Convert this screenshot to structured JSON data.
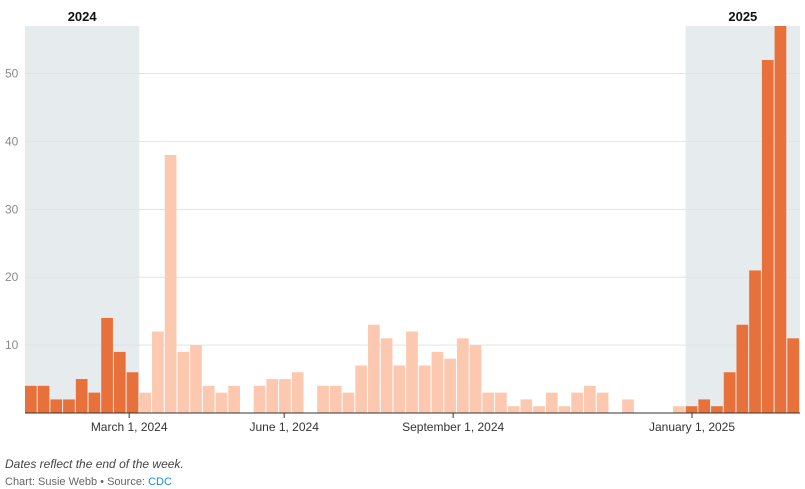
{
  "chart_data": {
    "type": "bar",
    "x_label_ticks": [
      "March 1, 2024",
      "June 1, 2024",
      "September 1, 2024",
      "January 1, 2025"
    ],
    "y_ticks": [
      10,
      20,
      30,
      40,
      50
    ],
    "ylim": [
      0,
      57
    ],
    "grid": true,
    "highlight_bands": [
      {
        "label": "2024",
        "from_index": 0,
        "to_index": 8
      },
      {
        "label": "2025",
        "from_index": 52,
        "to_index": 60
      }
    ],
    "colors": {
      "highlighted": "#e8703a",
      "muted": "#fcc9b0",
      "band": "#e6ecee",
      "grid": "#e3e3e3"
    },
    "values": [
      4,
      4,
      2,
      2,
      5,
      3,
      14,
      9,
      6,
      3,
      12,
      38,
      9,
      10,
      4,
      3,
      4,
      0,
      4,
      5,
      5,
      6,
      0,
      4,
      4,
      3,
      7,
      13,
      11,
      7,
      12,
      7,
      9,
      8,
      11,
      10,
      3,
      3,
      1,
      2,
      1,
      3,
      1,
      3,
      4,
      3,
      0,
      2,
      0,
      0,
      0,
      1,
      1,
      2,
      1,
      6,
      13,
      21,
      52,
      57,
      11
    ]
  },
  "footer": {
    "note": "Dates reflect the end of the week.",
    "credit_prefix": "Chart: Susie Webb • Source: ",
    "source_link": "CDC"
  }
}
